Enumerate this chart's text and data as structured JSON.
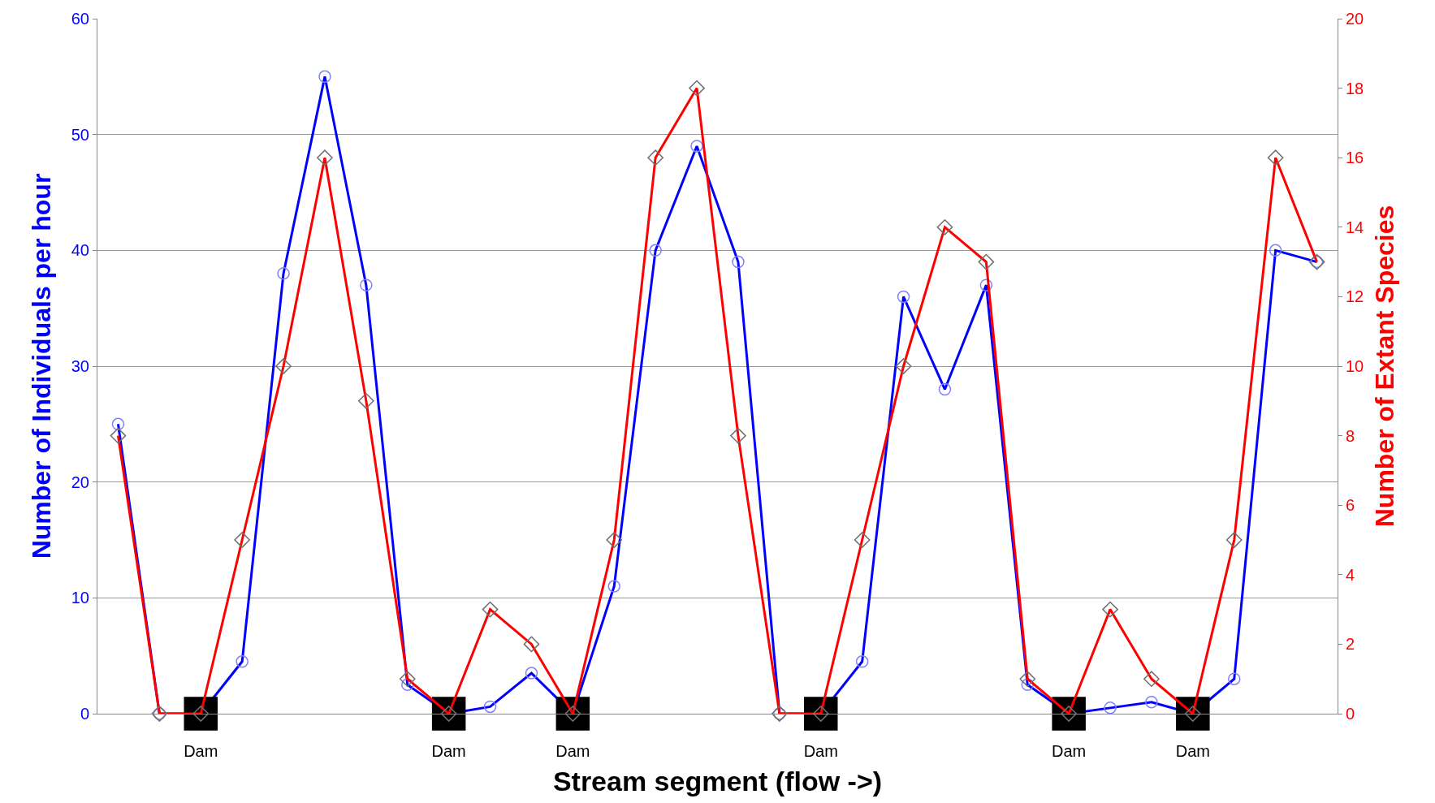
{
  "chart_data": {
    "type": "line",
    "xlabel": "Stream segment (flow ->)",
    "ylabel": "Number of Individuals per hour",
    "y2label": "Number of Extant Species",
    "categories": [
      null,
      null,
      "Dam",
      null,
      null,
      null,
      null,
      null,
      "Dam",
      null,
      null,
      "Dam",
      null,
      null,
      null,
      null,
      null,
      "Dam",
      null,
      null,
      null,
      null,
      null,
      "Dam",
      null,
      null,
      "Dam",
      null,
      null,
      null
    ],
    "series": [
      {
        "color": "#0000ff",
        "marker": "circle",
        "values": [
          25,
          0,
          0,
          4.5,
          38,
          55,
          37,
          2.5,
          0,
          0.6,
          3.5,
          0,
          11,
          40,
          49,
          39,
          0,
          0,
          4.5,
          36,
          28,
          37,
          2.5,
          0,
          0.5,
          1,
          0,
          3,
          40,
          39
        ]
      },
      {
        "color": "#ff0000",
        "marker": "diamond",
        "axis": "y2",
        "values": [
          8,
          0,
          0,
          5,
          10,
          16,
          9,
          1,
          0,
          3,
          2,
          0,
          5,
          16,
          18,
          8,
          0,
          0,
          5,
          10,
          14,
          13,
          1,
          0,
          3,
          1,
          0,
          5,
          16,
          13
        ]
      },
      {
        "type": "scatter",
        "color": "#000000",
        "marker": "square",
        "values": [
          null,
          null,
          0,
          null,
          null,
          null,
          null,
          null,
          0,
          null,
          null,
          0,
          null,
          null,
          null,
          null,
          null,
          0,
          null,
          null,
          null,
          null,
          null,
          0,
          null,
          null,
          0,
          null,
          null,
          null
        ]
      }
    ],
    "ylim": [
      0,
      60
    ],
    "yticks": [
      0,
      10,
      20,
      30,
      40,
      50,
      60
    ],
    "y2lim": [
      0,
      20
    ],
    "y2ticks": [
      0,
      2,
      4,
      6,
      8,
      10,
      12,
      14,
      16,
      18,
      20
    ],
    "grid": "y"
  }
}
